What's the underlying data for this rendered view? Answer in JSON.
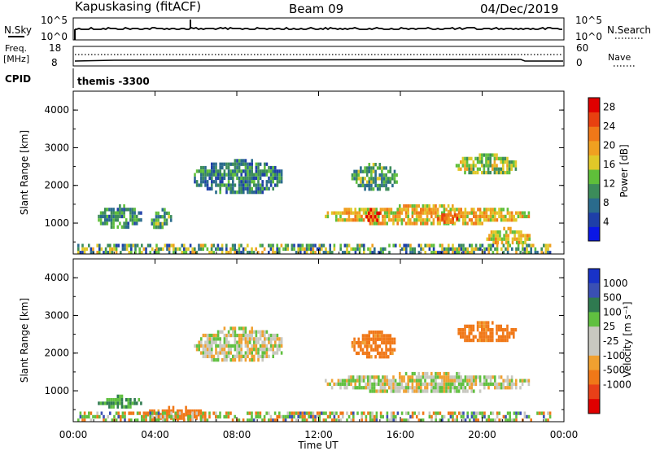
{
  "header": {
    "radar": "Kapuskasing (fitACF)",
    "beam": "Beam 09",
    "date": "04/Dec/2019"
  },
  "top_panels": {
    "nsky_label": "N.Sky",
    "nsky_ticks_left": [
      "10^5",
      "10^0"
    ],
    "nsky_ticks_right": [
      "10^5",
      "10^0"
    ],
    "nsearch_label": "N.Search",
    "freq_label_line1": "Freq.",
    "freq_label_line2": "[MHz]",
    "freq_ticks": [
      "18",
      "8"
    ],
    "nave_ticks": [
      "60",
      "0"
    ],
    "nave_label": "Nave",
    "cpid_label": "CPID",
    "cpid_value": "themis -3300"
  },
  "colors": {
    "power_scale": [
      "#0a17e6",
      "#1e3fa8",
      "#2a6b8c",
      "#3c8c5a",
      "#5fbf3a",
      "#e0c828",
      "#f0a020",
      "#f07818",
      "#e84010",
      "#e00000"
    ],
    "velocity_scale": [
      "#1832c8",
      "#3a50b4",
      "#2f7a50",
      "#60c040",
      "#c8c8c0",
      "#c8c8c0",
      "#f0a030",
      "#f07818",
      "#e84018",
      "#e00000"
    ]
  },
  "chart_data": [
    {
      "type": "heatmap",
      "panel": "power",
      "ylabel": "Slant Range [km]",
      "yticks": [
        1000,
        2000,
        3000,
        4000
      ],
      "ylim": [
        180,
        4500
      ],
      "xlim_hours": [
        0,
        24
      ],
      "colorbar_label": "Power [dB]",
      "colorbar_ticks": [
        4,
        8,
        12,
        16,
        20,
        24,
        28
      ],
      "colorbar_range": [
        0,
        30
      ],
      "regions": [
        {
          "t": [
            5.9,
            10.2
          ],
          "r": [
            1800,
            2700
          ],
          "v": 9
        },
        {
          "t": [
            1.2,
            3.3
          ],
          "r": [
            900,
            1500
          ],
          "v": 10
        },
        {
          "t": [
            3.8,
            4.8
          ],
          "r": [
            850,
            1400
          ],
          "v": 11
        },
        {
          "t": [
            12.3,
            22.3
          ],
          "r": [
            1000,
            1500
          ],
          "v": 18
        },
        {
          "t": [
            14.2,
            15.0
          ],
          "r": [
            1100,
            1400
          ],
          "v": 27
        },
        {
          "t": [
            17.8,
            18.8
          ],
          "r": [
            1050,
            1350
          ],
          "v": 24
        },
        {
          "t": [
            13.6,
            15.8
          ],
          "r": [
            1900,
            2600
          ],
          "v": 11
        },
        {
          "t": [
            18.7,
            21.6
          ],
          "r": [
            2300,
            2850
          ],
          "v": 14
        },
        {
          "t": [
            20.2,
            22.3
          ],
          "r": [
            450,
            900
          ],
          "v": 17
        },
        {
          "t": [
            0.2,
            23.3
          ],
          "r": [
            180,
            450
          ],
          "v": 8
        }
      ]
    },
    {
      "type": "heatmap",
      "panel": "velocity",
      "ylabel": "Slant Range [km]",
      "yticks": [
        1000,
        2000,
        3000,
        4000
      ],
      "ylim": [
        180,
        4500
      ],
      "xlim_hours": [
        0,
        24
      ],
      "xticks": [
        "00:00",
        "04:00",
        "08:00",
        "12:00",
        "16:00",
        "20:00",
        "00:00"
      ],
      "xlabel": "Time UT",
      "colorbar_label": "Velocity [m s⁻¹]",
      "colorbar_ticks": [
        "1000",
        "500",
        "100",
        "25",
        "-25",
        "-100",
        "-500",
        "-1000"
      ],
      "regions": [
        {
          "t": [
            5.9,
            10.2
          ],
          "r": [
            1800,
            2700
          ],
          "v": 0
        },
        {
          "t": [
            12.3,
            22.3
          ],
          "r": [
            1000,
            1500
          ],
          "v": 0
        },
        {
          "t": [
            13.6,
            15.8
          ],
          "r": [
            1900,
            2600
          ],
          "v": -150
        },
        {
          "t": [
            18.7,
            21.6
          ],
          "r": [
            2300,
            2850
          ],
          "v": -150
        },
        {
          "t": [
            1.2,
            3.3
          ],
          "r": [
            600,
            900
          ],
          "v": 100
        },
        {
          "t": [
            3.5,
            6.5
          ],
          "r": [
            250,
            600
          ],
          "v": -150
        },
        {
          "t": [
            0.2,
            23.3
          ],
          "r": [
            180,
            450
          ],
          "v": 60
        }
      ]
    }
  ]
}
